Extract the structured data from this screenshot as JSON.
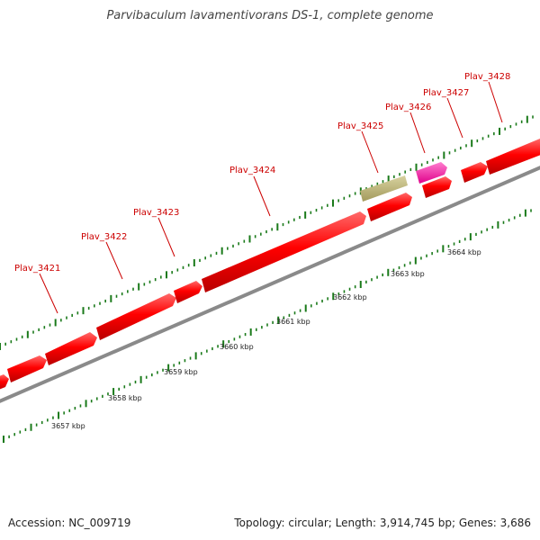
{
  "title": "Parvibaculum lavamentivorans DS-1, complete genome",
  "footer": {
    "accession": "Accession: NC_009719",
    "summary": "Topology: circular; Length: 3,914,745 bp; Genes: 3,686"
  },
  "colors": {
    "gene": "#ff0000",
    "gene_highlight": "#ff1aa3",
    "feature_olive": "#bfb77a",
    "backbone": "#8a8a8a",
    "ticks": "#1a7a1a",
    "label": "#cc0000"
  },
  "scale_labels": [
    "3657 kbp",
    "3658 kbp",
    "3659 kbp",
    "3660 kbp",
    "3661 kbp",
    "3662 kbp",
    "3663 kbp",
    "3664 kbp"
  ],
  "gene_labels": [
    "Plav_3421",
    "Plav_3422",
    "Plav_3423",
    "Plav_3424",
    "Plav_3425",
    "Plav_3426",
    "Plav_3427",
    "Plav_3428"
  ]
}
